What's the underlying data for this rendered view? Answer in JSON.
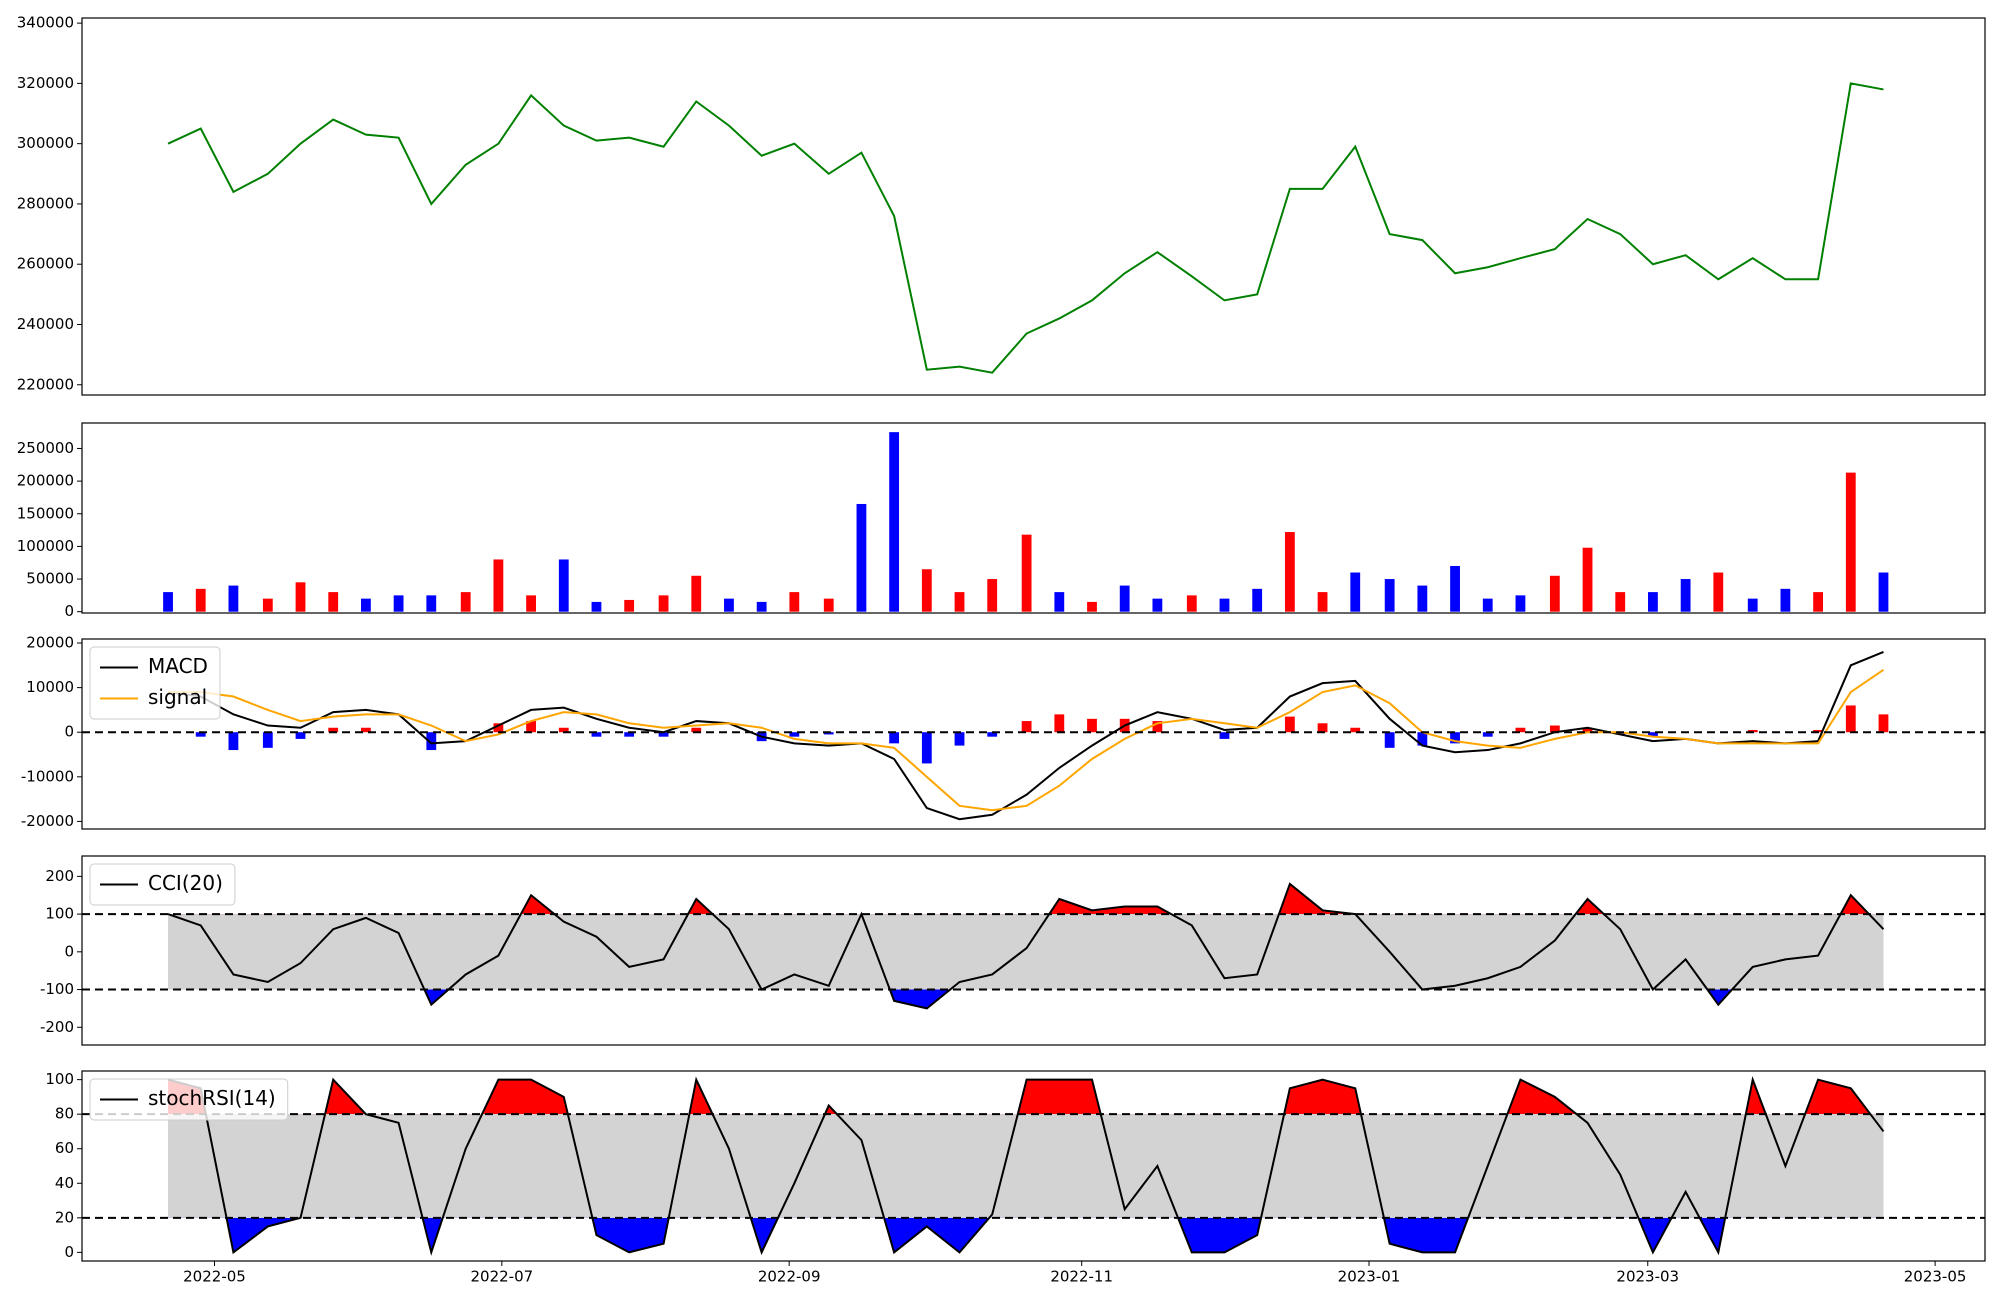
{
  "chart_data": [
    {
      "type": "line",
      "x": [
        2022.302,
        2022.321,
        2022.34,
        2022.36,
        2022.379,
        2022.398,
        2022.417,
        2022.436,
        2022.455,
        2022.475,
        2022.494,
        2022.513,
        2022.532,
        2022.551,
        2022.57,
        2022.59,
        2022.609,
        2022.628,
        2022.647,
        2022.666,
        2022.686,
        2022.705,
        2022.724,
        2022.743,
        2022.762,
        2022.781,
        2022.801,
        2022.82,
        2022.839,
        2022.858,
        2022.877,
        2022.897,
        2022.916,
        2022.935,
        2022.954,
        2022.973,
        2022.992,
        2023.012,
        2023.031,
        2023.05,
        2023.069,
        2023.088,
        2023.108,
        2023.127,
        2023.146,
        2023.165,
        2023.184,
        2023.203,
        2023.223,
        2023.242,
        2023.261,
        2023.28,
        2023.299
      ],
      "series": [
        {
          "color": "#008000",
          "values": [
            300000,
            305000,
            284000,
            290000,
            300000,
            308000,
            303000,
            302000,
            280000,
            293000,
            300000,
            316000,
            306000,
            301000,
            302000,
            299000,
            314000,
            306000,
            296000,
            300000,
            290000,
            297000,
            276000,
            225000,
            226000,
            224000,
            237000,
            242000,
            248000,
            257000,
            264000,
            256000,
            248000,
            250000,
            285000,
            285000,
            299000,
            270000,
            268000,
            257000,
            259000,
            262000,
            265000,
            275000,
            270000,
            260000,
            263000,
            255000,
            262000,
            255000,
            255000,
            320000,
            318000
          ]
        }
      ],
      "xlim": [
        2022.252,
        2023.358
      ],
      "ylim": [
        216600,
        341700
      ],
      "yticks": [
        220000,
        240000,
        260000,
        280000,
        300000,
        320000,
        340000
      ]
    },
    {
      "type": "bar",
      "x": [
        2022.302,
        2022.321,
        2022.34,
        2022.36,
        2022.379,
        2022.398,
        2022.417,
        2022.436,
        2022.455,
        2022.475,
        2022.494,
        2022.513,
        2022.532,
        2022.551,
        2022.57,
        2022.59,
        2022.609,
        2022.628,
        2022.647,
        2022.666,
        2022.686,
        2022.705,
        2022.724,
        2022.743,
        2022.762,
        2022.781,
        2022.801,
        2022.82,
        2022.839,
        2022.858,
        2022.877,
        2022.897,
        2022.916,
        2022.935,
        2022.954,
        2022.973,
        2022.992,
        2023.012,
        2023.031,
        2023.05,
        2023.069,
        2023.088,
        2023.108,
        2023.127,
        2023.146,
        2023.165,
        2023.184,
        2023.203,
        2023.223,
        2023.242,
        2023.261,
        2023.28,
        2023.299
      ],
      "values": [
        30000,
        35000,
        40000,
        20000,
        45000,
        30000,
        20000,
        25000,
        25000,
        30000,
        80000,
        25000,
        80000,
        15000,
        18000,
        25000,
        55000,
        20000,
        15000,
        30000,
        20000,
        165000,
        275000,
        65000,
        30000,
        50000,
        118000,
        30000,
        15000,
        40000,
        20000,
        25000,
        20000,
        35000,
        122000,
        30000,
        60000,
        50000,
        40000,
        70000,
        20000,
        25000,
        55000,
        98000,
        30000,
        30000,
        50000,
        60000,
        20000,
        35000,
        30000,
        213000,
        60000
      ],
      "colors": [
        "blue",
        "red",
        "blue",
        "red",
        "red",
        "red",
        "blue",
        "blue",
        "blue",
        "red",
        "red",
        "red",
        "blue",
        "blue",
        "red",
        "red",
        "red",
        "blue",
        "blue",
        "red",
        "red",
        "blue",
        "blue",
        "red",
        "red",
        "red",
        "red",
        "blue",
        "red",
        "blue",
        "blue",
        "red",
        "blue",
        "blue",
        "red",
        "red",
        "blue",
        "blue",
        "blue",
        "blue",
        "blue",
        "blue",
        "red",
        "red",
        "red",
        "blue",
        "blue",
        "red",
        "blue",
        "blue",
        "red",
        "red",
        "blue"
      ],
      "xlim": [
        2022.252,
        2023.358
      ],
      "ylim": [
        -2000,
        289000
      ],
      "yticks": [
        0,
        50000,
        100000,
        150000,
        200000,
        250000
      ]
    },
    {
      "type": "line",
      "x": [
        2022.302,
        2022.321,
        2022.34,
        2022.36,
        2022.379,
        2022.398,
        2022.417,
        2022.436,
        2022.455,
        2022.475,
        2022.494,
        2022.513,
        2022.532,
        2022.551,
        2022.57,
        2022.59,
        2022.609,
        2022.628,
        2022.647,
        2022.666,
        2022.686,
        2022.705,
        2022.724,
        2022.743,
        2022.762,
        2022.781,
        2022.801,
        2022.82,
        2022.839,
        2022.858,
        2022.877,
        2022.897,
        2022.916,
        2022.935,
        2022.954,
        2022.973,
        2022.992,
        2023.012,
        2023.031,
        2023.05,
        2023.069,
        2023.088,
        2023.108,
        2023.127,
        2023.146,
        2023.165,
        2023.184,
        2023.203,
        2023.223,
        2023.242,
        2023.261,
        2023.28,
        2023.299
      ],
      "series": [
        {
          "kind": "bar",
          "pos_color": "red",
          "neg_color": "blue",
          "values": [
            0,
            -1000,
            -4000,
            -3500,
            -1500,
            1000,
            1000,
            0,
            -4000,
            0,
            2000,
            2500,
            1000,
            -1000,
            -1000,
            -1000,
            1000,
            0,
            -2000,
            -1000,
            -500,
            0,
            -2500,
            -7000,
            -3000,
            -1000,
            2500,
            4000,
            3000,
            3000,
            2500,
            0,
            -1500,
            0,
            3500,
            2000,
            1000,
            -3500,
            -3000,
            -2500,
            -1000,
            1000,
            1500,
            1000,
            -500,
            -1000,
            0,
            0,
            500,
            0,
            500,
            6000,
            4000
          ]
        },
        {
          "name": "MACD",
          "color": "#000000",
          "values": [
            9000,
            8000,
            4000,
            1500,
            1000,
            4500,
            5000,
            4000,
            -2500,
            -2000,
            1500,
            5000,
            5500,
            3000,
            1000,
            0,
            2500,
            2000,
            -1000,
            -2500,
            -3000,
            -2500,
            -6000,
            -17000,
            -19500,
            -18500,
            -14000,
            -8000,
            -3000,
            1500,
            4500,
            3000,
            500,
            1000,
            8000,
            11000,
            11500,
            3000,
            -3000,
            -4500,
            -4000,
            -2500,
            0,
            1000,
            -500,
            -2000,
            -1500,
            -2500,
            -2000,
            -2500,
            -2000,
            15000,
            18000
          ]
        },
        {
          "name": "signal",
          "color": "#ffa500",
          "values": [
            9000,
            9000,
            8000,
            5000,
            2500,
            3500,
            4000,
            4000,
            1500,
            -2000,
            -500,
            2500,
            4500,
            4000,
            2000,
            1000,
            1500,
            2000,
            1000,
            -1500,
            -2500,
            -2500,
            -3500,
            -10000,
            -16500,
            -17500,
            -16500,
            -12000,
            -6000,
            -1500,
            2000,
            3000,
            2000,
            1000,
            4500,
            9000,
            10500,
            6500,
            0,
            -2000,
            -3000,
            -3500,
            -1500,
            0,
            0,
            -1000,
            -1500,
            -2500,
            -2500,
            -2500,
            -2500,
            9000,
            14000
          ]
        }
      ],
      "hlines": [
        0
      ],
      "legend": "upper left",
      "xlim": [
        2022.252,
        2023.358
      ],
      "ylim": [
        -21700,
        20900
      ],
      "yticks": [
        -20000,
        -10000,
        0,
        10000,
        20000
      ]
    },
    {
      "type": "line",
      "x": [
        2022.302,
        2022.321,
        2022.34,
        2022.36,
        2022.379,
        2022.398,
        2022.417,
        2022.436,
        2022.455,
        2022.475,
        2022.494,
        2022.513,
        2022.532,
        2022.551,
        2022.57,
        2022.59,
        2022.609,
        2022.628,
        2022.647,
        2022.666,
        2022.686,
        2022.705,
        2022.724,
        2022.743,
        2022.762,
        2022.781,
        2022.801,
        2022.82,
        2022.839,
        2022.858,
        2022.877,
        2022.897,
        2022.916,
        2022.935,
        2022.954,
        2022.973,
        2022.992,
        2023.012,
        2023.031,
        2023.05,
        2023.069,
        2023.088,
        2023.108,
        2023.127,
        2023.146,
        2023.165,
        2023.184,
        2023.203,
        2023.223,
        2023.242,
        2023.261,
        2023.28,
        2023.299
      ],
      "series": [
        {
          "name": "CCI(20)",
          "color": "#000000",
          "values": [
            100,
            70,
            -60,
            -80,
            -30,
            60,
            90,
            50,
            -140,
            -60,
            -10,
            150,
            80,
            40,
            -40,
            -20,
            140,
            60,
            -100,
            -60,
            -90,
            100,
            -130,
            -150,
            -80,
            -60,
            10,
            140,
            110,
            120,
            120,
            70,
            -70,
            -60,
            180,
            110,
            100,
            0,
            -100,
            -90,
            -70,
            -40,
            30,
            140,
            60,
            -100,
            -20,
            -140,
            -40,
            -20,
            -10,
            150,
            60
          ]
        }
      ],
      "hlines": [
        100,
        -100
      ],
      "band_color": "#d3d3d3",
      "above_color": "red",
      "below_color": "blue",
      "legend": "upper left",
      "xlim": [
        2022.252,
        2023.358
      ],
      "ylim": [
        -247,
        254
      ],
      "yticks": [
        -200,
        -100,
        0,
        100,
        200
      ]
    },
    {
      "type": "line",
      "x": [
        2022.302,
        2022.321,
        2022.34,
        2022.36,
        2022.379,
        2022.398,
        2022.417,
        2022.436,
        2022.455,
        2022.475,
        2022.494,
        2022.513,
        2022.532,
        2022.551,
        2022.57,
        2022.59,
        2022.609,
        2022.628,
        2022.647,
        2022.666,
        2022.686,
        2022.705,
        2022.724,
        2022.743,
        2022.762,
        2022.781,
        2022.801,
        2022.82,
        2022.839,
        2022.858,
        2022.877,
        2022.897,
        2022.916,
        2022.935,
        2022.954,
        2022.973,
        2022.992,
        2023.012,
        2023.031,
        2023.05,
        2023.069,
        2023.088,
        2023.108,
        2023.127,
        2023.146,
        2023.165,
        2023.184,
        2023.203,
        2023.223,
        2023.242,
        2023.261,
        2023.28,
        2023.299
      ],
      "series": [
        {
          "name": "stochRSI(14)",
          "color": "#000000",
          "values": [
            100,
            95,
            0,
            15,
            20,
            100,
            80,
            75,
            0,
            60,
            100,
            100,
            90,
            10,
            0,
            5,
            100,
            60,
            0,
            40,
            85,
            65,
            0,
            15,
            0,
            22,
            100,
            100,
            100,
            25,
            50,
            0,
            0,
            10,
            95,
            100,
            95,
            5,
            0,
            0,
            50,
            100,
            90,
            75,
            45,
            0,
            35,
            0,
            100,
            50,
            100,
            95,
            70
          ]
        }
      ],
      "hlines": [
        80,
        20
      ],
      "band_color": "#d3d3d3",
      "above_color": "red",
      "below_color": "blue",
      "legend": "upper left",
      "xlim": [
        2022.252,
        2023.358
      ],
      "ylim": [
        -5,
        105
      ],
      "yticks": [
        0,
        20,
        40,
        60,
        80,
        100
      ],
      "xticks": [
        {
          "value": 2022.329,
          "label": "2022-05"
        },
        {
          "value": 2022.496,
          "label": "2022-07"
        },
        {
          "value": 2022.663,
          "label": "2022-09"
        },
        {
          "value": 2022.833,
          "label": "2022-11"
        },
        {
          "value": 2023.0,
          "label": "2023-01"
        },
        {
          "value": 2023.162,
          "label": "2023-03"
        },
        {
          "value": 2023.329,
          "label": "2023-05"
        }
      ]
    }
  ]
}
